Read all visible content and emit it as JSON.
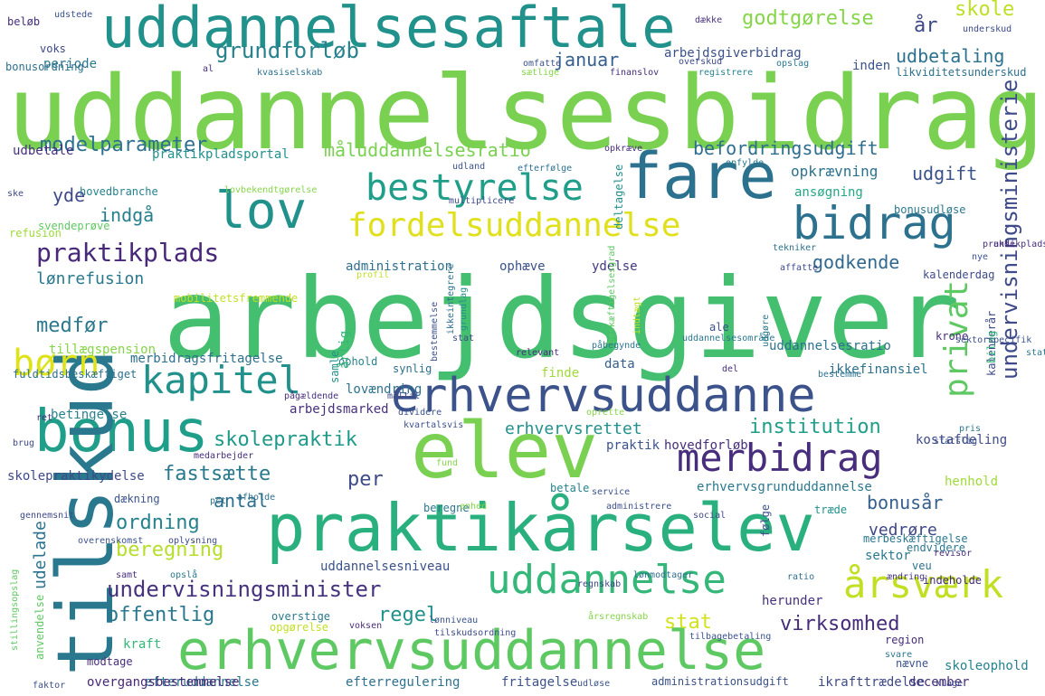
{
  "word_cloud": {
    "words": [
      {
        "text": "uddannelsesbidrag",
        "color": "#7ad151"
      },
      {
        "text": "arbejdsgiver",
        "color": "#44bf70"
      },
      {
        "text": "erhvervsuddannelse",
        "color": "#5ec962"
      },
      {
        "text": "praktikårselev",
        "color": "#2ab07f"
      },
      {
        "text": "uddannelsesaftale",
        "color": "#21918c"
      },
      {
        "text": "fare",
        "color": "#2c728e"
      },
      {
        "text": "elev",
        "color": "#7ad151"
      },
      {
        "text": "bonus",
        "color": "#1f9e89"
      },
      {
        "text": "erhvervsuddanne",
        "color": "#3b528b"
      },
      {
        "text": "bidrag",
        "color": "#2c728e"
      },
      {
        "text": "lov",
        "color": "#21918c"
      },
      {
        "text": "bestyrelse",
        "color": "#1f9e89"
      },
      {
        "text": "fordelsuddannelse",
        "color": "#e0e01e"
      },
      {
        "text": "kapitel",
        "color": "#21918c"
      },
      {
        "text": "merbidrag",
        "color": "#472d7b"
      },
      {
        "text": "uddannelse",
        "color": "#35b779"
      },
      {
        "text": "årsværk",
        "color": "#c2df23"
      },
      {
        "text": "tilskud",
        "color": "#2a788e"
      },
      {
        "text": "børn",
        "color": "#dde318"
      },
      {
        "text": "privat",
        "color": "#5ec962"
      },
      {
        "text": "undervisningsministerie",
        "color": "#3e4a89"
      },
      {
        "text": "undervisningsminister",
        "color": "#46327e"
      },
      {
        "text": "praktikplads",
        "color": "#482878"
      },
      {
        "text": "modelparameter",
        "color": "#2d708e"
      },
      {
        "text": "grundforløb",
        "color": "#26828e"
      },
      {
        "text": "godtgørelse",
        "color": "#86d549"
      },
      {
        "text": "skole",
        "color": "#bddf26"
      },
      {
        "text": "år",
        "color": "#3e4989"
      },
      {
        "text": "udbetaling",
        "color": "#2c728e"
      },
      {
        "text": "januar",
        "color": "#355f8d"
      },
      {
        "text": "måluddannelsesratio",
        "color": "#7ad151"
      },
      {
        "text": "befordringsudgift",
        "color": "#2e6e8e"
      },
      {
        "text": "udgift",
        "color": "#3b528b"
      },
      {
        "text": "indgå",
        "color": "#277f8e"
      },
      {
        "text": "yde",
        "color": "#3e4a89"
      },
      {
        "text": "godkende",
        "color": "#31688e"
      },
      {
        "text": "lønrefusion",
        "color": "#2a788e"
      },
      {
        "text": "medfør",
        "color": "#2a788e"
      },
      {
        "text": "skolepraktik",
        "color": "#1f9a8a"
      },
      {
        "text": "institution",
        "color": "#1f9e89"
      },
      {
        "text": "erhvervsrettet",
        "color": "#21918c"
      },
      {
        "text": "fastsætte",
        "color": "#2a788e"
      },
      {
        "text": "per",
        "color": "#3e4a89"
      },
      {
        "text": "antal",
        "color": "#2d708e"
      },
      {
        "text": "ordning",
        "color": "#26828e"
      },
      {
        "text": "beregning",
        "color": "#b5de2b"
      },
      {
        "text": "udelade",
        "color": "#2c728e"
      },
      {
        "text": "offentlig",
        "color": "#2a788e"
      },
      {
        "text": "regel",
        "color": "#21918c"
      },
      {
        "text": "stat",
        "color": "#d2e21b"
      },
      {
        "text": "virksomhed",
        "color": "#472c7a"
      },
      {
        "text": "bonusår",
        "color": "#355f8d"
      },
      {
        "text": "vedrøre",
        "color": "#3f4788"
      },
      {
        "text": "arbejdsgiverbidrag",
        "color": "#3b528b"
      },
      {
        "text": "opkrævning",
        "color": "#2c728e"
      },
      {
        "text": "ansøgning",
        "color": "#22a785"
      },
      {
        "text": "bonusudløse",
        "color": "#2a788e"
      },
      {
        "text": "administration",
        "color": "#2e6e8e"
      },
      {
        "text": "ophæve",
        "color": "#3b528b"
      },
      {
        "text": "ydelse",
        "color": "#453781"
      },
      {
        "text": "uddannelsesratio",
        "color": "#2c728e"
      },
      {
        "text": "ikkefinansiel",
        "color": "#2d708e"
      },
      {
        "text": "data",
        "color": "#355f8d"
      },
      {
        "text": "finde",
        "color": "#a0da39"
      },
      {
        "text": "lovændring",
        "color": "#2c728e"
      },
      {
        "text": "arbejdsmarked",
        "color": "#46307e"
      },
      {
        "text": "betingelse",
        "color": "#26828e"
      },
      {
        "text": "praktik",
        "color": "#3b528b"
      },
      {
        "text": "hovedforløb",
        "color": "#472d7b"
      },
      {
        "text": "erhvervsgrunduddannelse",
        "color": "#2a788e"
      },
      {
        "text": "kostafdeling",
        "color": "#3e4a89"
      },
      {
        "text": "henhold",
        "color": "#a0da39"
      },
      {
        "text": "sektor",
        "color": "#2a788e"
      },
      {
        "text": "veu",
        "color": "#2d708e"
      },
      {
        "text": "uddannelsesniveau",
        "color": "#3b528b"
      },
      {
        "text": "herunder",
        "color": "#46327e"
      },
      {
        "text": "skoleophold",
        "color": "#26828e"
      },
      {
        "text": "december",
        "color": "#472d7b"
      },
      {
        "text": "efteruddannelse",
        "color": "#2a788e"
      },
      {
        "text": "efterregulering",
        "color": "#2c728e"
      },
      {
        "text": "fritagelse",
        "color": "#3b528b"
      },
      {
        "text": "administrationsudgift",
        "color": "#3b528b"
      },
      {
        "text": "ikrafttrædelse",
        "color": "#3e4a89"
      },
      {
        "text": "overgangsbestemmelse",
        "color": "#482878"
      },
      {
        "text": "kraft",
        "color": "#35b779"
      },
      {
        "text": "modtage",
        "color": "#472d7b"
      },
      {
        "text": "skolepraktikydelse",
        "color": "#3e4a89"
      },
      {
        "text": "fuldtidsbeskæftiget",
        "color": "#2d708e"
      },
      {
        "text": "merbidragsfritagelse",
        "color": "#2d708e"
      },
      {
        "text": "tillægspension",
        "color": "#86d549"
      },
      {
        "text": "praktikpladsportal",
        "color": "#21918c"
      },
      {
        "text": "hovedbranche",
        "color": "#26828e"
      },
      {
        "text": "udbetale",
        "color": "#46307e"
      },
      {
        "text": "voks",
        "color": "#3e4a89"
      },
      {
        "text": "periode",
        "color": "#2a788e"
      },
      {
        "text": "bonusordning",
        "color": "#2d708e"
      },
      {
        "text": "beløb",
        "color": "#472d7b"
      },
      {
        "text": "udstede",
        "color": "#3b528b"
      },
      {
        "text": "omfatte",
        "color": "#3b528b"
      },
      {
        "text": "dække",
        "color": "#46307e"
      },
      {
        "text": "underskud",
        "color": "#3e4a89"
      },
      {
        "text": "inden",
        "color": "#3b528b"
      },
      {
        "text": "likviditetsunderskud",
        "color": "#2d708e"
      },
      {
        "text": "kvasiselskab",
        "color": "#2c728e"
      },
      {
        "text": "finanslov",
        "color": "#472d7b"
      },
      {
        "text": "opslag",
        "color": "#2a788e"
      },
      {
        "text": "overskud",
        "color": "#3e4a89"
      },
      {
        "text": "registrere",
        "color": "#26828e"
      },
      {
        "text": "refusion",
        "color": "#a0da39"
      },
      {
        "text": "svendeprøve",
        "color": "#5ec962"
      },
      {
        "text": "mobilitetsfremmende",
        "color": "#c2df23"
      },
      {
        "text": "lovbekendtgørelse",
        "color": "#86d549"
      },
      {
        "text": "multiplicere",
        "color": "#3e4a89"
      },
      {
        "text": "deltagelse",
        "color": "#21918c"
      },
      {
        "text": "tekniker",
        "color": "#2d708e"
      },
      {
        "text": "affatte",
        "color": "#3e4a89"
      },
      {
        "text": "kalenderdag",
        "color": "#3e4a89"
      },
      {
        "text": "krone",
        "color": "#472d7b"
      },
      {
        "text": "ale",
        "color": "#3b528b"
      },
      {
        "text": "relevant",
        "color": "#472d7b"
      },
      {
        "text": "ophold",
        "color": "#26828e"
      },
      {
        "text": "synlig",
        "color": "#2d708e"
      },
      {
        "text": "årlig",
        "color": "#35b779"
      },
      {
        "text": "samle",
        "color": "#21918c"
      },
      {
        "text": "måltal",
        "color": "#3e4a89"
      },
      {
        "text": "pågældende",
        "color": "#46307e"
      },
      {
        "text": "dividere",
        "color": "#3b528b"
      },
      {
        "text": "kvartalsvis",
        "color": "#3b528b"
      },
      {
        "text": "medarbejder",
        "color": "#472d7b"
      },
      {
        "text": "dækning",
        "color": "#3b528b"
      },
      {
        "text": "beregne",
        "color": "#2a788e"
      },
      {
        "text": "service",
        "color": "#3b528b"
      },
      {
        "text": "administrere",
        "color": "#3b528b"
      },
      {
        "text": "social",
        "color": "#3e4a89"
      },
      {
        "text": "træde",
        "color": "#21918c"
      },
      {
        "text": "følge",
        "color": "#3b528b"
      },
      {
        "text": "endvidere",
        "color": "#2a788e"
      },
      {
        "text": "indeholde",
        "color": "#472d7b"
      },
      {
        "text": "merbeskæftigelse",
        "color": "#2a788e"
      },
      {
        "text": "lønmodtager",
        "color": "#2d708e"
      },
      {
        "text": "regnskab",
        "color": "#3e4a89"
      },
      {
        "text": "overstige",
        "color": "#2a788e"
      },
      {
        "text": "opgørelse",
        "color": "#c2df23"
      },
      {
        "text": "voksen",
        "color": "#472d7b"
      },
      {
        "text": "lønniveau",
        "color": "#3b528b"
      },
      {
        "text": "årsregnskab",
        "color": "#86d549"
      },
      {
        "text": "tilskudsordning",
        "color": "#3e4a89"
      },
      {
        "text": "tilbagebetaling",
        "color": "#3b528b"
      },
      {
        "text": "region",
        "color": "#472d7b"
      },
      {
        "text": "svare",
        "color": "#2a788e"
      },
      {
        "text": "nævne",
        "color": "#3b528b"
      },
      {
        "text": "anvendelse",
        "color": "#5ec962"
      },
      {
        "text": "udløse",
        "color": "#3b528b"
      },
      {
        "text": "klage",
        "color": "#3e4a89"
      },
      {
        "text": "faktor",
        "color": "#3b528b"
      },
      {
        "text": "revisor",
        "color": "#472d7b"
      },
      {
        "text": "ratio",
        "color": "#2d708e"
      },
      {
        "text": "ændring",
        "color": "#46307e"
      },
      {
        "text": "statslig",
        "color": "#3b528b"
      },
      {
        "text": "pris",
        "color": "#2a788e"
      },
      {
        "text": "kalenderår",
        "color": "#3e4a89"
      },
      {
        "text": "statistik",
        "color": "#2a788e"
      },
      {
        "text": "bilag",
        "color": "#35b779"
      },
      {
        "text": "praktikpladsafhængig",
        "color": "#472d7b"
      },
      {
        "text": "sektorspecifik",
        "color": "#3b528b"
      },
      {
        "text": "bestemme",
        "color": "#2c728e"
      },
      {
        "text": "del",
        "color": "#472d7b"
      },
      {
        "text": "oprette",
        "color": "#86d549"
      },
      {
        "text": "stillingsopslag",
        "color": "#5ec962"
      },
      {
        "text": "brug",
        "color": "#3e4a89"
      },
      {
        "text": "ret",
        "color": "#472d7b"
      },
      {
        "text": "betale",
        "color": "#26828e"
      },
      {
        "text": "samt",
        "color": "#472d7b"
      },
      {
        "text": "opslå",
        "color": "#2a788e"
      },
      {
        "text": "oplysning",
        "color": "#3e4a89"
      },
      {
        "text": "pct",
        "color": "#2d708e"
      },
      {
        "text": "afholde",
        "color": "#2d708e"
      },
      {
        "text": "enhed",
        "color": "#86d549"
      },
      {
        "text": "overenskomst",
        "color": "#3b528b"
      },
      {
        "text": "gennemsnit",
        "color": "#3e4a89"
      },
      {
        "text": "fund",
        "color": "#86d549"
      },
      {
        "text": "grundlag",
        "color": "#21918c"
      },
      {
        "text": "ikkeintegrere",
        "color": "#2d708e"
      },
      {
        "text": "bestemmelse",
        "color": "#3b528b"
      },
      {
        "text": "stat",
        "color": "#3e4a89"
      },
      {
        "text": "indtægt",
        "color": "#c2df23"
      },
      {
        "text": "beskæftigelsesgrad",
        "color": "#5ec962"
      },
      {
        "text": "påbegynde",
        "color": "#2a788e"
      },
      {
        "text": "efterfølge",
        "color": "#2d708e"
      },
      {
        "text": "udland",
        "color": "#3b528b"
      },
      {
        "text": "opkræve",
        "color": "#472d7b"
      },
      {
        "text": "udgøre",
        "color": "#2a788e"
      },
      {
        "text": "uddannelsesområde",
        "color": "#2a788e"
      },
      {
        "text": "profil",
        "color": "#c2df23"
      },
      {
        "text": "opfylde",
        "color": "#2a788e"
      },
      {
        "text": "ske",
        "color": "#3e4a89"
      },
      {
        "text": "al",
        "color": "#472d7b"
      },
      {
        "text": "sætlige",
        "color": "#86d549"
      },
      {
        "text": "unde",
        "color": "#472d7b"
      },
      {
        "text": "nye",
        "color": "#3b528b"
      }
    ]
  }
}
